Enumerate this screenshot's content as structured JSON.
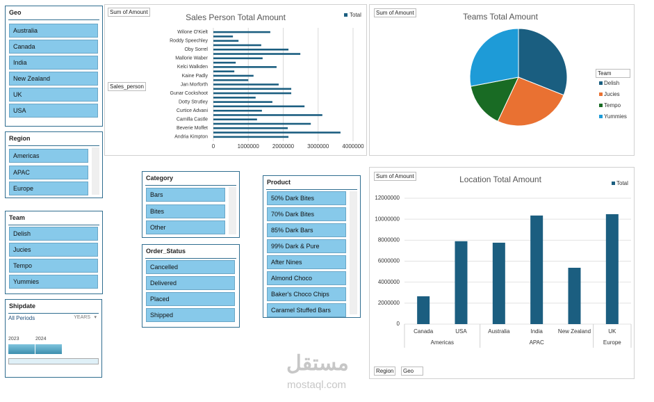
{
  "chart_data": [
    {
      "type": "hbar",
      "title": "Sales Person Total Amount",
      "value_field": "Sum of Amount",
      "axis_field": "Sales_person",
      "categories": [
        "Wilone O'Kielt",
        null,
        "Roddy Speechley",
        null,
        "Oby Sorrel",
        null,
        "Mallorie Waber",
        null,
        "Kelci Walkden",
        null,
        "Kaine Padly",
        null,
        "Jan Morforth",
        null,
        "Gunar Cockshoot",
        null,
        "Dotty Strutley",
        null,
        "Curtice Advani",
        null,
        "Camilla Castle",
        null,
        "Beverie Moffet",
        null,
        "Andria Kimpton"
      ],
      "series": [
        {
          "name": "Total",
          "color": "#1b5e80",
          "values": [
            1630000,
            560000,
            720000,
            1370000,
            2150000,
            2490000,
            1410000,
            640000,
            1810000,
            600000,
            1150000,
            1000000,
            1870000,
            2230000,
            2230000,
            1210000,
            1690000,
            2610000,
            1390000,
            3120000,
            1250000,
            2790000,
            2130000,
            3640000,
            2150000
          ]
        }
      ],
      "xlim": [
        0,
        4000000
      ],
      "xticks": [
        0,
        1000000,
        2000000,
        3000000,
        4000000
      ],
      "grid": true
    },
    {
      "type": "pie",
      "title": "Teams Total Amount",
      "value_field": "Sum of Amount",
      "legend_title": "Team",
      "categories": [
        "Delish",
        "Jucies",
        "Tempo",
        "Yummies"
      ],
      "values": [
        31,
        26,
        15,
        28
      ],
      "colors": [
        "#1a5e80",
        "#e97132",
        "#196b24",
        "#1e9bd7"
      ]
    },
    {
      "type": "bar",
      "title": "Location Total Amount",
      "value_field": "Sum of Amount",
      "axis_fields": [
        "Region",
        "Geo"
      ],
      "groups": [
        {
          "name": "Americas",
          "categories": [
            "Canada",
            "USA"
          ]
        },
        {
          "name": "APAC",
          "categories": [
            "Australia",
            "India",
            "New Zealand"
          ]
        },
        {
          "name": "Europe",
          "categories": [
            "UK"
          ]
        }
      ],
      "series": [
        {
          "name": "Total",
          "color": "#1b5e80",
          "values": [
            2650000,
            7900000,
            7760000,
            10350000,
            5370000,
            10480000
          ]
        }
      ],
      "ylim": [
        0,
        12000000
      ],
      "yticks": [
        0,
        2000000,
        4000000,
        6000000,
        8000000,
        10000000,
        12000000
      ],
      "grid": true
    }
  ],
  "slicers": {
    "geo": {
      "title": "Geo",
      "items": [
        "Australia",
        "Canada",
        "India",
        "New Zealand",
        "UK",
        "USA"
      ]
    },
    "region": {
      "title": "Region",
      "items": [
        "Americas",
        "APAC",
        "Europe"
      ]
    },
    "team": {
      "title": "Team",
      "items": [
        "Delish",
        "Jucies",
        "Tempo",
        "Yummies"
      ]
    },
    "category": {
      "title": "Category",
      "items": [
        "Bars",
        "Bites",
        "Other"
      ]
    },
    "order_status": {
      "title": "Order_Status",
      "items": [
        "Cancelled",
        "Delivered",
        "Placed",
        "Shipped"
      ]
    },
    "product": {
      "title": "Product",
      "items": [
        "50% Dark Bites",
        "70% Dark Bites",
        "85% Dark Bars",
        "99% Dark & Pure",
        "After Nines",
        "Almond Choco",
        "Baker's Choco Chips",
        "Caramel Stuffed Bars"
      ]
    },
    "shipdate": {
      "title": "Shipdate",
      "period": "All Periods",
      "level": "YEARS",
      "years": [
        "2023",
        "2024"
      ]
    }
  },
  "watermark": {
    "arabic": "مستقل",
    "latin": "mostaql.com"
  }
}
